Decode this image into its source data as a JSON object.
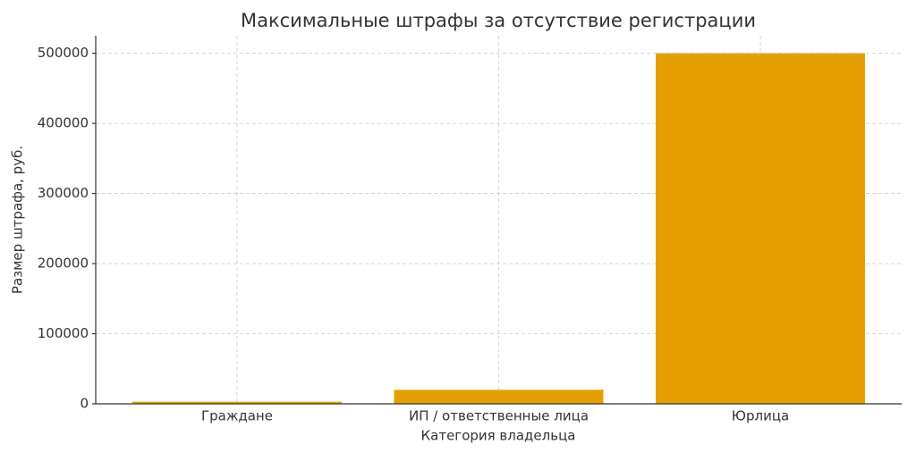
{
  "chart_data": {
    "type": "bar",
    "title": "Максимальные штрафы за отсутствие регистрации",
    "x_label": "Категория владельца",
    "y_label": "Размер штрафа, руб.",
    "categories": [
      "Граждане",
      "ИП / ответственные лица",
      "Юрлица"
    ],
    "values": [
      3000,
      20000,
      500000
    ],
    "color": "#e69f00",
    "ylim": [
      0,
      525000
    ],
    "yticks": [
      0,
      100000,
      200000,
      300000,
      400000,
      500000
    ],
    "grid": true
  }
}
